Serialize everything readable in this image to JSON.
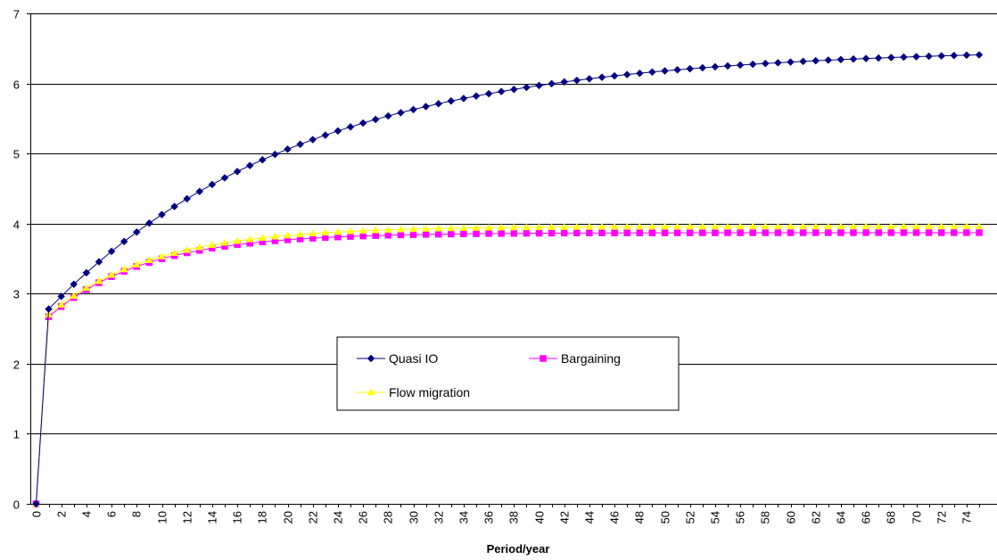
{
  "chart_data": {
    "type": "line",
    "title": "",
    "xlabel": "Period/year",
    "ylabel": "",
    "xlim": [
      0,
      75
    ],
    "ylim": [
      0,
      7
    ],
    "yticks": [
      0,
      1,
      2,
      3,
      4,
      5,
      6,
      7
    ],
    "xtick_step": 2,
    "grid": "horizontal",
    "legend_position": "center",
    "series": [
      {
        "name": "Quasi IO",
        "color": "#000080",
        "marker": "diamond",
        "start": 0,
        "first": 2.78,
        "asymptote": 6.5,
        "rate": 0.05
      },
      {
        "name": "Bargaining",
        "color": "#FF00FF",
        "marker": "square",
        "start": 0,
        "first": 2.67,
        "asymptote": 3.87,
        "rate": 0.13
      },
      {
        "name": "Flow migration",
        "color": "#FFFF00",
        "marker": "triangle",
        "start": 0,
        "first": 2.7,
        "asymptote": 3.96,
        "rate": 0.12
      }
    ]
  }
}
